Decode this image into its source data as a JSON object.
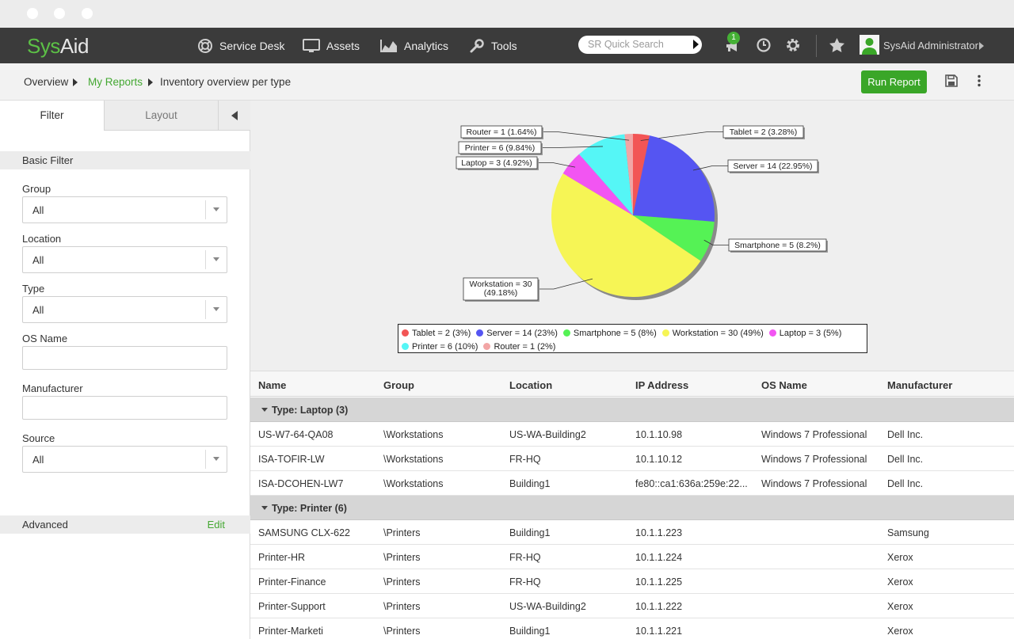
{
  "app": {
    "logo_sys": "Sys",
    "logo_aid": "Aid"
  },
  "nav": {
    "service_desk": "Service Desk",
    "assets": "Assets",
    "analytics": "Analytics",
    "tools": "Tools",
    "search_placeholder": "SR Quick Search",
    "notification_count": "1",
    "user_name": "SysAid Administrator"
  },
  "breadcrumb": {
    "overview": "Overview",
    "my_reports": "My Reports",
    "current": "Inventory overview per type"
  },
  "toolbar": {
    "run_report": "Run Report"
  },
  "sidebar": {
    "tab_filter": "Filter",
    "tab_layout": "Layout",
    "basic_filter": "Basic Filter",
    "group_label": "Group",
    "group_value": "All",
    "location_label": "Location",
    "location_value": "All",
    "type_label": "Type",
    "type_value": "All",
    "os_name_label": "OS Name",
    "manufacturer_label": "Manufacturer",
    "source_label": "Source",
    "source_value": "All",
    "advanced": "Advanced",
    "edit": "Edit"
  },
  "chart_data": {
    "type": "pie",
    "slices": [
      {
        "name": "Tablet",
        "value": 2,
        "label": "Tablet = 2 (3.28%)",
        "legend": "Tablet = 2 (3%)",
        "color": "#f25555"
      },
      {
        "name": "Server",
        "value": 14,
        "label": "Server = 14 (22.95%)",
        "legend": "Server = 14 (23%)",
        "color": "#5555f2"
      },
      {
        "name": "Smartphone",
        "value": 5,
        "label": "Smartphone = 5 (8.2%)",
        "legend": "Smartphone = 5 (8%)",
        "color": "#55f255"
      },
      {
        "name": "Workstation",
        "value": 30,
        "label": "Workstation = 30|(49.18%)",
        "legend": "Workstation = 30 (49%)",
        "color": "#f6f555"
      },
      {
        "name": "Laptop",
        "value": 3,
        "label": "Laptop = 3 (4.92%)",
        "legend": "Laptop = 3 (5%)",
        "color": "#f255f2"
      },
      {
        "name": "Printer",
        "value": 6,
        "label": "Printer = 6 (9.84%)",
        "legend": "Printer = 6 (10%)",
        "color": "#55f6f6"
      },
      {
        "name": "Router",
        "value": 1,
        "label": "Router = 1 (1.64%)",
        "legend": "Router = 1 (2%)",
        "color": "#f2a5a5"
      }
    ],
    "legend_position": "bottom"
  },
  "table": {
    "columns": [
      "Name",
      "Group",
      "Location",
      "IP Address",
      "OS Name",
      "Manufacturer"
    ],
    "groups": [
      {
        "label": "Type: Laptop (3)",
        "rows": [
          [
            "US-W7-64-QA08",
            "\\Workstations",
            "US-WA-Building2",
            "10.1.10.98",
            "Windows 7 Professional",
            "Dell Inc."
          ],
          [
            "ISA-TOFIR-LW",
            "\\Workstations",
            "FR-HQ",
            "10.1.10.12",
            "Windows 7 Professional",
            "Dell Inc."
          ],
          [
            "ISA-DCOHEN-LW7",
            "\\Workstations",
            "Building1",
            "fe80::ca1:636a:259e:22...",
            "Windows 7 Professional",
            "Dell Inc."
          ]
        ]
      },
      {
        "label": "Type: Printer (6)",
        "rows": [
          [
            "SAMSUNG CLX-622",
            "\\Printers",
            "Building1",
            "10.1.1.223",
            "",
            "Samsung"
          ],
          [
            "Printer-HR",
            "\\Printers",
            "FR-HQ",
            "10.1.1.224",
            "",
            "Xerox"
          ],
          [
            "Printer-Finance",
            "\\Printers",
            "FR-HQ",
            "10.1.1.225",
            "",
            "Xerox"
          ],
          [
            "Printer-Support",
            "\\Printers",
            "US-WA-Building2",
            "10.1.1.222",
            "",
            "Xerox"
          ],
          [
            "Printer-Marketi",
            "\\Printers",
            "Building1",
            "10.1.1.221",
            "",
            "Xerox"
          ]
        ]
      }
    ]
  }
}
